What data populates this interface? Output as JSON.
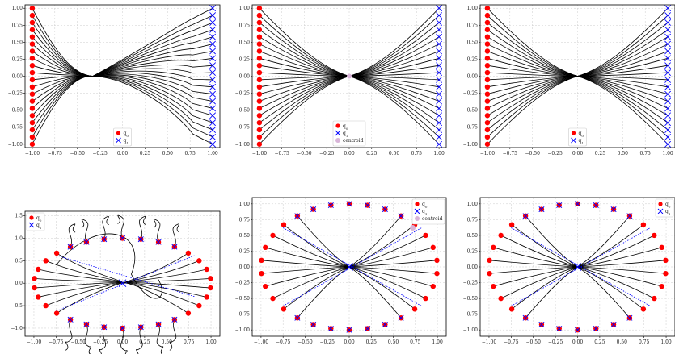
{
  "colors": {
    "q0": "#ff0000",
    "q1": "#0000ff",
    "centroid": "#d8b4d8",
    "curve": "#000000",
    "dotted": "#0000ff"
  },
  "chart_data": [
    {
      "type": "line",
      "variant": "lines-converge",
      "xlim": [
        -1.08,
        1.08
      ],
      "ylim": [
        -1.05,
        1.05
      ],
      "xticks": [
        "-1.00",
        "-0.75",
        "-0.50",
        "-0.25",
        "0.00",
        "0.25",
        "0.50",
        "0.75",
        "1.00"
      ],
      "yticks": [
        "-1.00",
        "-0.75",
        "-0.50",
        "-0.25",
        "0.00",
        "0.25",
        "0.50",
        "0.75",
        "1.00"
      ],
      "meet": [
        -0.33,
        0.0
      ],
      "source_points_x": -1.0,
      "target_points_x": 1.0,
      "n_points": 20,
      "legend": [
        "q_0",
        "q_1"
      ],
      "legend_loc": "lower center"
    },
    {
      "type": "line",
      "variant": "lines-converge",
      "xlim": [
        -1.08,
        1.08
      ],
      "ylim": [
        -1.05,
        1.05
      ],
      "xticks": [
        "-1.00",
        "-0.75",
        "-0.50",
        "-0.25",
        "0.00",
        "0.25",
        "0.50",
        "0.75",
        "1.00"
      ],
      "yticks": [
        "-1.00",
        "-0.75",
        "-0.50",
        "-0.25",
        "0.00",
        "0.25",
        "0.50",
        "0.75",
        "1.00"
      ],
      "meet": [
        0.0,
        0.0
      ],
      "source_points_x": -1.0,
      "target_points_x": 1.0,
      "n_points": 20,
      "legend": [
        "q_0",
        "q_1",
        "centroid"
      ],
      "legend_loc": "lower center"
    },
    {
      "type": "line",
      "variant": "lines-converge",
      "xlim": [
        -1.08,
        1.08
      ],
      "ylim": [
        -1.05,
        1.05
      ],
      "xticks": [
        "-1.00",
        "-0.75",
        "-0.50",
        "-0.25",
        "0.00",
        "0.25",
        "0.50",
        "0.75",
        "1.00"
      ],
      "yticks": [
        "-1.00",
        "-0.75",
        "-0.50",
        "-0.25",
        "0.00",
        "0.25",
        "0.50",
        "0.75",
        "1.00"
      ],
      "meet": [
        0.0,
        0.0
      ],
      "source_points_x": -1.0,
      "target_points_x": 1.0,
      "n_points": 20,
      "legend": [
        "q_0",
        "q_1"
      ],
      "legend_loc": "lower center"
    },
    {
      "type": "line",
      "variant": "ellipse-tangled",
      "xlim": [
        -1.1,
        1.1
      ],
      "ylim": [
        -1.18,
        1.6
      ],
      "xticks": [
        "-1.00",
        "-0.75",
        "-0.50",
        "-0.25",
        "0.00",
        "0.25",
        "0.50",
        "0.75",
        "1.00"
      ],
      "yticks": [
        "-1.0",
        "-0.5",
        "0.0",
        "0.5",
        "1.0",
        "1.5"
      ],
      "ellipse_ry": 1.0,
      "ellipse_rx": 1.0,
      "n_points": 30,
      "legend": [
        "q_0",
        "q_1"
      ],
      "legend_loc": "upper left"
    },
    {
      "type": "line",
      "variant": "ellipse-star",
      "xlim": [
        -1.1,
        1.1
      ],
      "ylim": [
        -1.1,
        1.1
      ],
      "xticks": [
        "-1.00",
        "-0.75",
        "-0.50",
        "-0.25",
        "0.00",
        "0.25",
        "0.50",
        "0.75",
        "1.00"
      ],
      "yticks": [
        "-1.00",
        "-0.75",
        "-0.50",
        "-0.25",
        "0.00",
        "0.25",
        "0.50",
        "0.75",
        "1.00"
      ],
      "center": [
        0.0,
        0.0
      ],
      "n_points": 30,
      "legend": [
        "q_0",
        "q_1",
        "centroid"
      ],
      "legend_loc": "upper right"
    },
    {
      "type": "line",
      "variant": "ellipse-star",
      "xlim": [
        -1.1,
        1.1
      ],
      "ylim": [
        -1.1,
        1.1
      ],
      "xticks": [
        "-1.00",
        "-0.75",
        "-0.50",
        "-0.25",
        "0.00",
        "0.25",
        "0.50",
        "0.75",
        "1.00"
      ],
      "yticks": [
        "-1.00",
        "-0.75",
        "-0.50",
        "-0.25",
        "0.00",
        "0.25",
        "0.50",
        "0.75",
        "1.00"
      ],
      "center": [
        0.0,
        0.0
      ],
      "n_points": 30,
      "legend": [
        "q_0",
        "q_1"
      ],
      "legend_loc": "upper right"
    }
  ]
}
